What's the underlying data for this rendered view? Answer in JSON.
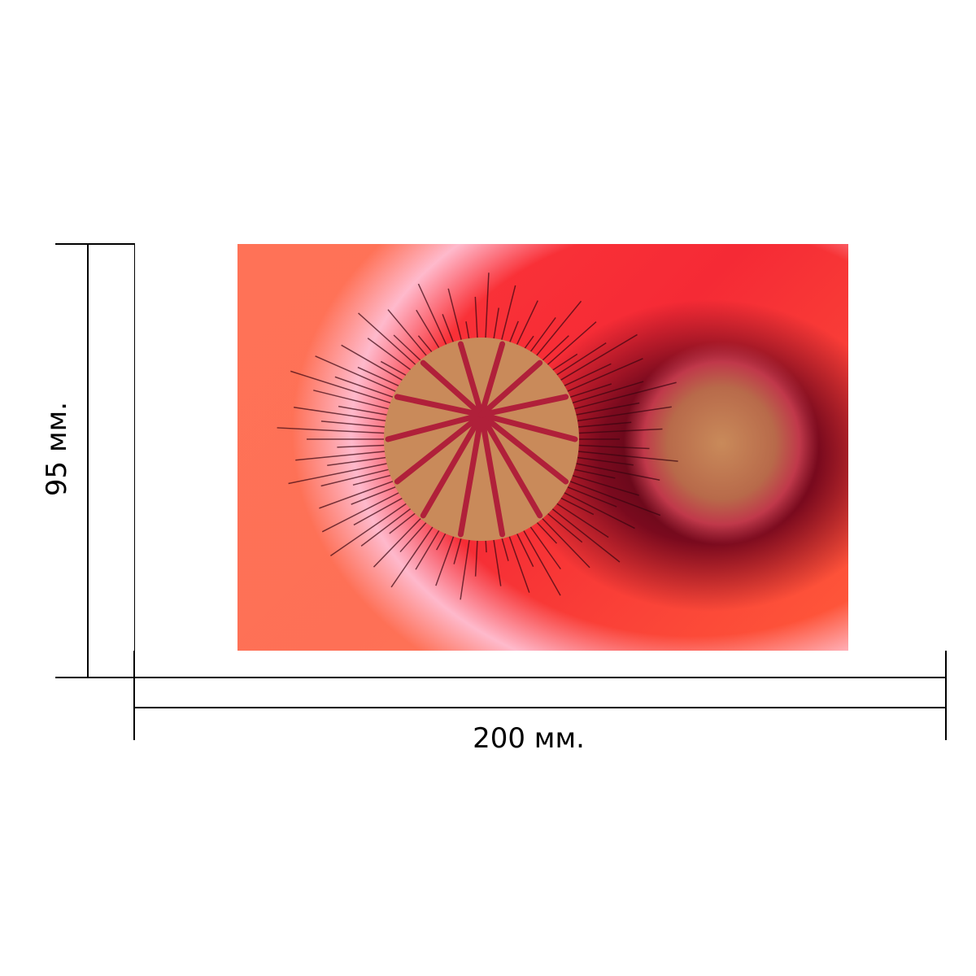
{
  "dimensions": {
    "width_label": "200 мм.",
    "height_label": "95 мм."
  },
  "image": {
    "subject": "poppy-flower-closeup",
    "colors": {
      "petal": "#f52a35",
      "center": "#c98a5a",
      "stamens": "#3a0510"
    }
  }
}
